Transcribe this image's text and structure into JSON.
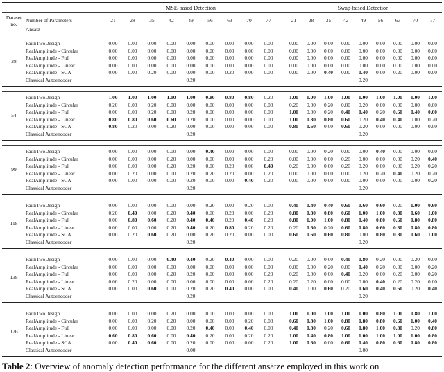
{
  "table": {
    "group_headers": [
      "MSE-based Detection",
      "Swap-based Detection"
    ],
    "param_header_label": "Number of Parameters",
    "ansatz_label": "Ansatz",
    "dataset_header": [
      "Dataset",
      "no."
    ],
    "parameters": [
      "21",
      "28",
      "35",
      "42",
      "49",
      "56",
      "63",
      "70",
      "77"
    ],
    "row_labels": [
      "PauliTwoDesign",
      "RealAmplitude - Circular",
      "RealAmplitude - Full",
      "RealAmplitude - Linear",
      "RealAmplitude - SCA",
      "Classical Autoencoder"
    ],
    "bold_rule": "values >= 0.40 are bold",
    "datasets": [
      {
        "id": "28",
        "mse_rows": [
          [
            "0.00",
            "0.00",
            "0.00",
            "0.00",
            "0.00",
            "0.00",
            "0.00",
            "0.00",
            "0.00"
          ],
          [
            "0.00",
            "0.00",
            "0.00",
            "0.00",
            "0.00",
            "0.00",
            "0.00",
            "0.00",
            "0.00"
          ],
          [
            "0.00",
            "0.00",
            "0.00",
            "0.00",
            "0.00",
            "0.00",
            "0.00",
            "0.00",
            "0.00"
          ],
          [
            "0.00",
            "0.00",
            "0.00",
            "0.00",
            "0.00",
            "0.00",
            "0.00",
            "0.00",
            "0.00"
          ],
          [
            "0.00",
            "0.00",
            "0.20",
            "0.00",
            "0.00",
            "0.00",
            "0.20",
            "0.00",
            "0.00"
          ]
        ],
        "mse_classical": "0.20",
        "swap_rows": [
          [
            "0.00",
            "0.00",
            "0.00",
            "0.00",
            "0.00",
            "0.00",
            "0.00",
            "0.00",
            "0.00"
          ],
          [
            "0.00",
            "0.00",
            "0.00",
            "0.00",
            "0.00",
            "0.00",
            "0.00",
            "0.00",
            "0.00"
          ],
          [
            "0.00",
            "0.00",
            "0.00",
            "0.00",
            "0.00",
            "0.00",
            "0.00",
            "0.00",
            "0.00"
          ],
          [
            "0.00",
            "0.00",
            "0.00",
            "0.00",
            "0.00",
            "0.00",
            "0.00",
            "0.00",
            "0.00"
          ],
          [
            "0.00",
            "0.00",
            "0.40",
            "0.00",
            "0.40",
            "0.00",
            "0.20",
            "0.00",
            "0.00"
          ]
        ],
        "swap_classical": "0.20"
      },
      {
        "id": "54",
        "mse_rows": [
          [
            "1.00",
            "1.00",
            "1.00",
            "1.00",
            "1.00",
            "0.80",
            "0.80",
            "0.80",
            "0.20"
          ],
          [
            "0.20",
            "0.00",
            "0.20",
            "0.00",
            "0.00",
            "0.00",
            "0.00",
            "0.00",
            "0.00"
          ],
          [
            "0.00",
            "0.00",
            "0.20",
            "0.00",
            "0.20",
            "0.00",
            "0.00",
            "0.00",
            "0.00"
          ],
          [
            "0.80",
            "0.80",
            "0.60",
            "0.60",
            "0.20",
            "0.00",
            "0.00",
            "0.00",
            "0.00"
          ],
          [
            "0.80",
            "0.20",
            "0.00",
            "0.20",
            "0.00",
            "0.00",
            "0.00",
            "0.00",
            "0.00"
          ]
        ],
        "mse_classical": "0.20",
        "swap_rows": [
          [
            "1.00",
            "1.00",
            "1.00",
            "1.00",
            "1.00",
            "1.00",
            "1.00",
            "1.00",
            "1.00"
          ],
          [
            "0.20",
            "0.00",
            "0.20",
            "0.00",
            "0.20",
            "0.00",
            "0.00",
            "0.00",
            "0.00"
          ],
          [
            "1.00",
            "0.00",
            "0.20",
            "0.40",
            "0.40",
            "0.20",
            "0.60",
            "0.40",
            "0.60"
          ],
          [
            "1.00",
            "0.80",
            "0.80",
            "0.60",
            "0.20",
            "0.40",
            "0.40",
            "0.00",
            "0.20"
          ],
          [
            "0.80",
            "0.60",
            "0.00",
            "0.60",
            "0.20",
            "0.00",
            "0.00",
            "0.00",
            "0.00"
          ]
        ],
        "swap_classical": "0.20"
      },
      {
        "id": "99",
        "mse_rows": [
          [
            "0.00",
            "0.00",
            "0.00",
            "0.00",
            "0.00",
            "0.40",
            "0.00",
            "0.00",
            "0.00"
          ],
          [
            "0.00",
            "0.00",
            "0.00",
            "0.20",
            "0.00",
            "0.00",
            "0.00",
            "0.00",
            "0.20"
          ],
          [
            "0.00",
            "0.00",
            "0.00",
            "0.20",
            "0.20",
            "0.00",
            "0.20",
            "0.00",
            "0.40"
          ],
          [
            "0.00",
            "0.20",
            "0.00",
            "0.00",
            "0.20",
            "0.20",
            "0.20",
            "0.00",
            "0.20"
          ],
          [
            "0.00",
            "0.00",
            "0.00",
            "0.00",
            "0.20",
            "0.00",
            "0.00",
            "0.40",
            "0.20"
          ]
        ],
        "mse_classical": "0.20",
        "swap_rows": [
          [
            "0.00",
            "0.00",
            "0.20",
            "0.00",
            "0.00",
            "0.40",
            "0.00",
            "0.00",
            "0.00"
          ],
          [
            "0.00",
            "0.00",
            "0.00",
            "0.20",
            "0.00",
            "0.00",
            "0.00",
            "0.20",
            "0.40"
          ],
          [
            "0.20",
            "0.00",
            "0.00",
            "0.20",
            "0.20",
            "0.00",
            "0.00",
            "0.20",
            "0.20"
          ],
          [
            "0.00",
            "0.00",
            "0.00",
            "0.00",
            "0.20",
            "0.20",
            "0.40",
            "0.20",
            "0.20"
          ],
          [
            "0.00",
            "0.00",
            "0.00",
            "0.00",
            "0.00",
            "0.00",
            "0.00",
            "0.00",
            "0.20"
          ]
        ],
        "swap_classical": "0.20"
      },
      {
        "id": "118",
        "mse_rows": [
          [
            "0.00",
            "0.00",
            "0.00",
            "0.00",
            "0.00",
            "0.20",
            "0.00",
            "0.20",
            "0.00"
          ],
          [
            "0.20",
            "0.40",
            "0.00",
            "0.20",
            "0.40",
            "0.00",
            "0.20",
            "0.00",
            "0.20"
          ],
          [
            "0.00",
            "0.80",
            "0.60",
            "0.20",
            "0.40",
            "0.40",
            "0.20",
            "0.40",
            "0.20"
          ],
          [
            "0.00",
            "0.00",
            "0.00",
            "0.20",
            "0.40",
            "0.20",
            "0.80",
            "0.20",
            "0.20"
          ],
          [
            "0.00",
            "0.20",
            "0.60",
            "0.20",
            "0.00",
            "0.20",
            "0.20",
            "0.00",
            "0.00"
          ]
        ],
        "mse_classical": "0.20",
        "swap_rows": [
          [
            "0.40",
            "0.40",
            "0.40",
            "0.60",
            "0.60",
            "0.60",
            "0.20",
            "1.00",
            "0.60"
          ],
          [
            "0.80",
            "0.80",
            "0.80",
            "0.60",
            "1.00",
            "1.00",
            "0.80",
            "0.60",
            "1.00"
          ],
          [
            "0.80",
            "1.00",
            "1.00",
            "0.80",
            "0.40",
            "0.80",
            "0.60",
            "0.80",
            "0.80"
          ],
          [
            "0.20",
            "0.60",
            "0.20",
            "0.60",
            "0.80",
            "0.60",
            "0.80",
            "0.80",
            "0.80"
          ],
          [
            "0.60",
            "0.60",
            "0.60",
            "0.80",
            "0.00",
            "0.80",
            "0.80",
            "0.60",
            "1.00"
          ]
        ],
        "swap_classical": "0.20"
      },
      {
        "id": "138",
        "mse_rows": [
          [
            "0.00",
            "0.00",
            "0.00",
            "0.40",
            "0.40",
            "0.20",
            "0.40",
            "0.00",
            "0.00"
          ],
          [
            "0.00",
            "0.00",
            "0.00",
            "0.00",
            "0.00",
            "0.00",
            "0.00",
            "0.00",
            "0.00"
          ],
          [
            "0.00",
            "0.00",
            "0.00",
            "0.20",
            "0.20",
            "0.00",
            "0.00",
            "0.00",
            "0.20"
          ],
          [
            "0.00",
            "0.20",
            "0.00",
            "0.00",
            "0.00",
            "0.00",
            "0.00",
            "0.00",
            "0.20"
          ],
          [
            "0.00",
            "0.00",
            "0.60",
            "0.00",
            "0.20",
            "0.20",
            "0.40",
            "0.00",
            "0.00"
          ]
        ],
        "mse_classical": "0.20",
        "swap_rows": [
          [
            "0.20",
            "0.00",
            "0.00",
            "0.40",
            "0.80",
            "0.20",
            "0.00",
            "0.20",
            "0.00"
          ],
          [
            "0.00",
            "0.00",
            "0.20",
            "0.00",
            "0.40",
            "0.20",
            "0.00",
            "0.00",
            "0.20"
          ],
          [
            "0.20",
            "0.00",
            "0.00",
            "0.40",
            "0.20",
            "0.00",
            "0.20",
            "0.00",
            "0.20"
          ],
          [
            "0.20",
            "0.20",
            "0.00",
            "0.00",
            "0.00",
            "0.40",
            "0.20",
            "0.20",
            "0.00"
          ],
          [
            "0.40",
            "0.00",
            "0.60",
            "0.20",
            "0.60",
            "0.40",
            "0.60",
            "0.20",
            "0.40"
          ]
        ],
        "swap_classical": "0.20"
      },
      {
        "id": "176",
        "mse_rows": [
          [
            "0.00",
            "0.00",
            "0.00",
            "0.20",
            "0.00",
            "0.00",
            "0.00",
            "0.00",
            "0.00"
          ],
          [
            "0.00",
            "0.00",
            "0.20",
            "0.20",
            "0.00",
            "0.00",
            "0.00",
            "0.20",
            "0.00"
          ],
          [
            "0.00",
            "0.00",
            "0.00",
            "0.00",
            "0.20",
            "0.40",
            "0.00",
            "0.40",
            "0.00"
          ],
          [
            "0.60",
            "0.80",
            "0.60",
            "0.00",
            "0.40",
            "0.20",
            "0.00",
            "0.20",
            "0.20"
          ],
          [
            "0.00",
            "0.40",
            "0.60",
            "0.00",
            "0.20",
            "0.00",
            "0.00",
            "0.00",
            "0.20"
          ]
        ],
        "mse_classical": "0.00",
        "swap_rows": [
          [
            "1.00",
            "1.00",
            "1.00",
            "1.00",
            "1.00",
            "0.80",
            "1.00",
            "0.80",
            "1.00"
          ],
          [
            "0.60",
            "0.80",
            "1.00",
            "0.80",
            "0.80",
            "0.80",
            "0.60",
            "1.00",
            "0.40"
          ],
          [
            "0.40",
            "0.80",
            "0.20",
            "0.60",
            "0.80",
            "1.00",
            "0.80",
            "0.20",
            "0.80"
          ],
          [
            "1.00",
            "0.40",
            "0.80",
            "1.00",
            "1.00",
            "1.00",
            "1.00",
            "1.00",
            "0.80"
          ],
          [
            "1.00",
            "0.60",
            "0.00",
            "0.60",
            "0.40",
            "0.80",
            "0.60",
            "0.80",
            "0.80"
          ]
        ],
        "swap_classical": "0.00"
      }
    ]
  },
  "caption": {
    "label": "Table 2",
    "text": ": Overview of anomaly detection performance for the different ansätze employed in this work on"
  }
}
